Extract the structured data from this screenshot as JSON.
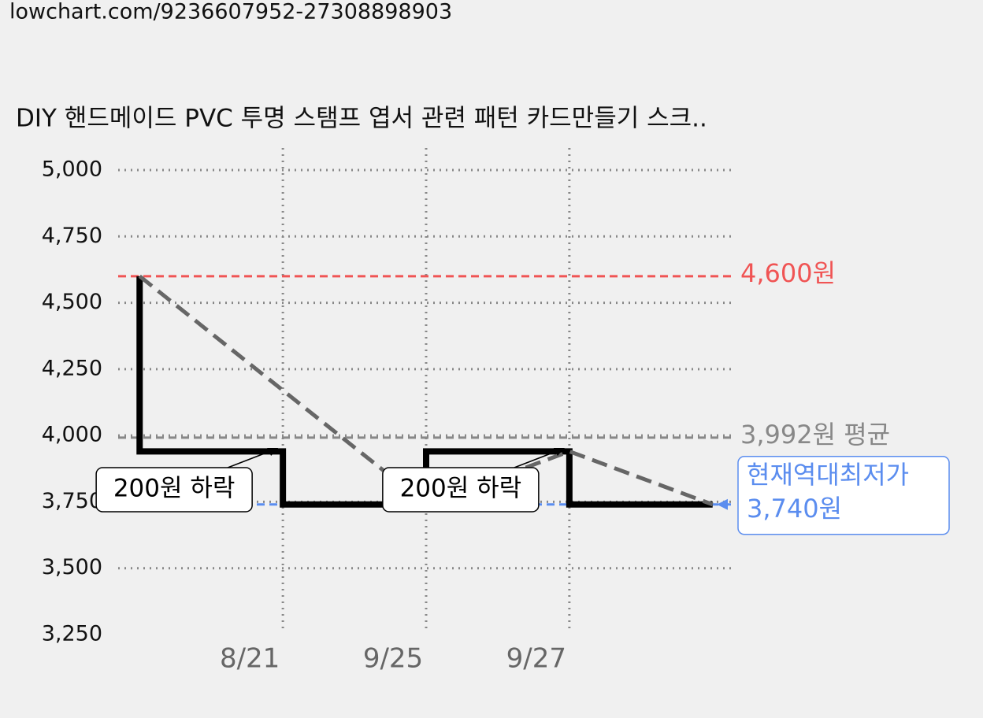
{
  "url": "lowchart.com/9236607952-27308898903",
  "chart_data": {
    "type": "step",
    "title": "DIY 핸드메이드 PVC 투명 스탬프 엽서 관련 패턴 카드만들기 스크..",
    "xlim": [
      -0.15,
      4.15
    ],
    "xticks": [
      {
        "value": 1,
        "label": "8/21"
      },
      {
        "value": 2,
        "label": "9/25"
      },
      {
        "value": 3,
        "label": "9/27"
      }
    ],
    "ylim": [
      3250,
      5000
    ],
    "yticks": [
      {
        "value": 3250,
        "label": "3,250"
      },
      {
        "value": 3500,
        "label": "3,500"
      },
      {
        "value": 3750,
        "label": "3,750"
      },
      {
        "value": 4000,
        "label": "4,000"
      },
      {
        "value": 4250,
        "label": "4,250"
      },
      {
        "value": 4500,
        "label": "4,500"
      },
      {
        "value": 4750,
        "label": "4,750"
      },
      {
        "value": 5000,
        "label": "5,000"
      }
    ],
    "grid": true,
    "series": [
      {
        "name": "price",
        "color": "#000000",
        "step": "post",
        "x": [
          0,
          0,
          1,
          2,
          3,
          4
        ],
        "values": [
          4600,
          3940,
          3740,
          3940,
          3740,
          3740
        ]
      },
      {
        "name": "trend",
        "color": "#666666",
        "dashed": true,
        "x": [
          0,
          2,
          3,
          4
        ],
        "values": [
          4600,
          3740,
          3940,
          3740
        ]
      }
    ],
    "reference_lines": [
      {
        "value": 4600,
        "label": "4,600원",
        "color": "#f05454"
      },
      {
        "value": 3992,
        "label": "3,992원 평균",
        "color": "#888888"
      },
      {
        "value": 3740,
        "label": "3,740원",
        "note": "현재역대최저가",
        "color": "#5b8def"
      }
    ],
    "annotations": [
      {
        "text": "200원 하락",
        "x": 1
      },
      {
        "text": "200원 하락",
        "x": 3
      }
    ]
  }
}
